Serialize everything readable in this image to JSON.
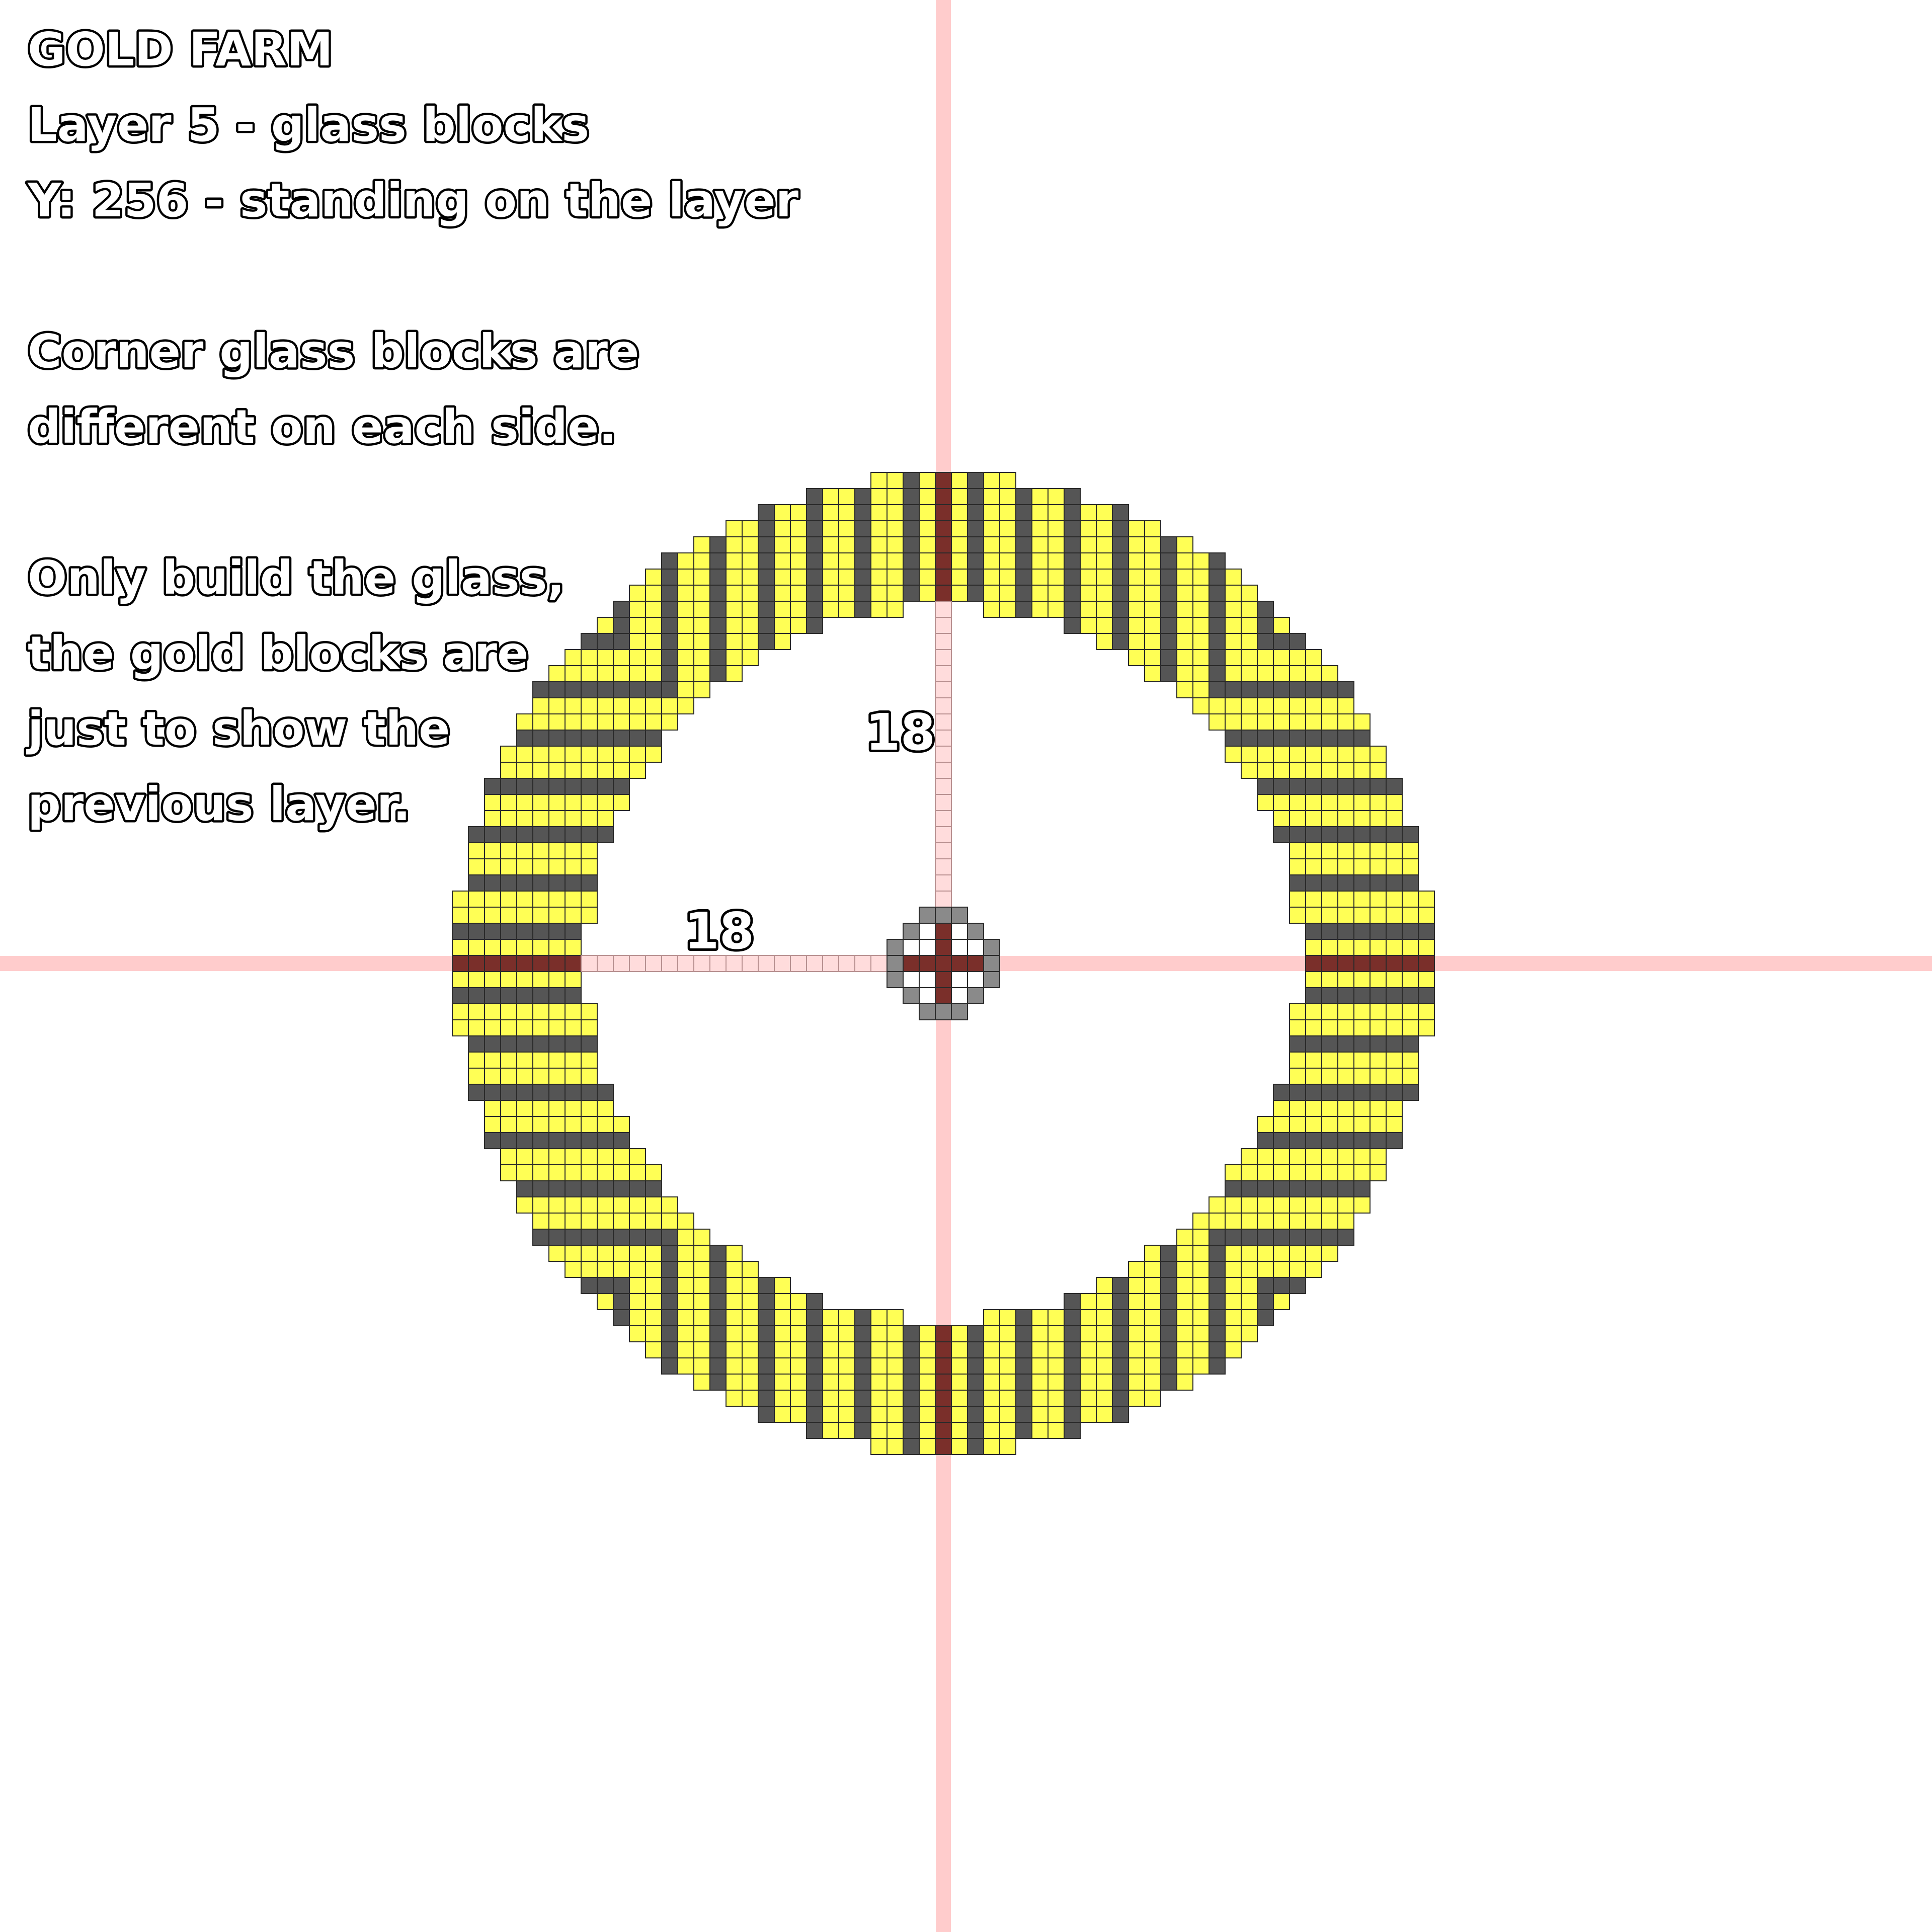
{
  "notes": {
    "title": "GOLD FARM",
    "layer": "Layer 5 - glass blocks",
    "height": "Y: 256 - standing on the layer",
    "corner_note_line1": "Corner glass blocks are",
    "corner_note_line2": "different on each side.",
    "build_note_line1": "Only build the glass,",
    "build_note_line2": "the gold blocks are",
    "build_note_line3": "just to show the",
    "build_note_line4": "previous layer."
  },
  "measurements": {
    "vertical_distance": "18",
    "horizontal_distance": "18"
  },
  "colors": {
    "gold_block": "#ffff55",
    "glass_block": "#555555",
    "center_line_block": "#7a2f2a",
    "guide_line": "#ffcccc",
    "center_gray": "#9a9a9a",
    "block_outline": "#2a2a2a"
  }
}
